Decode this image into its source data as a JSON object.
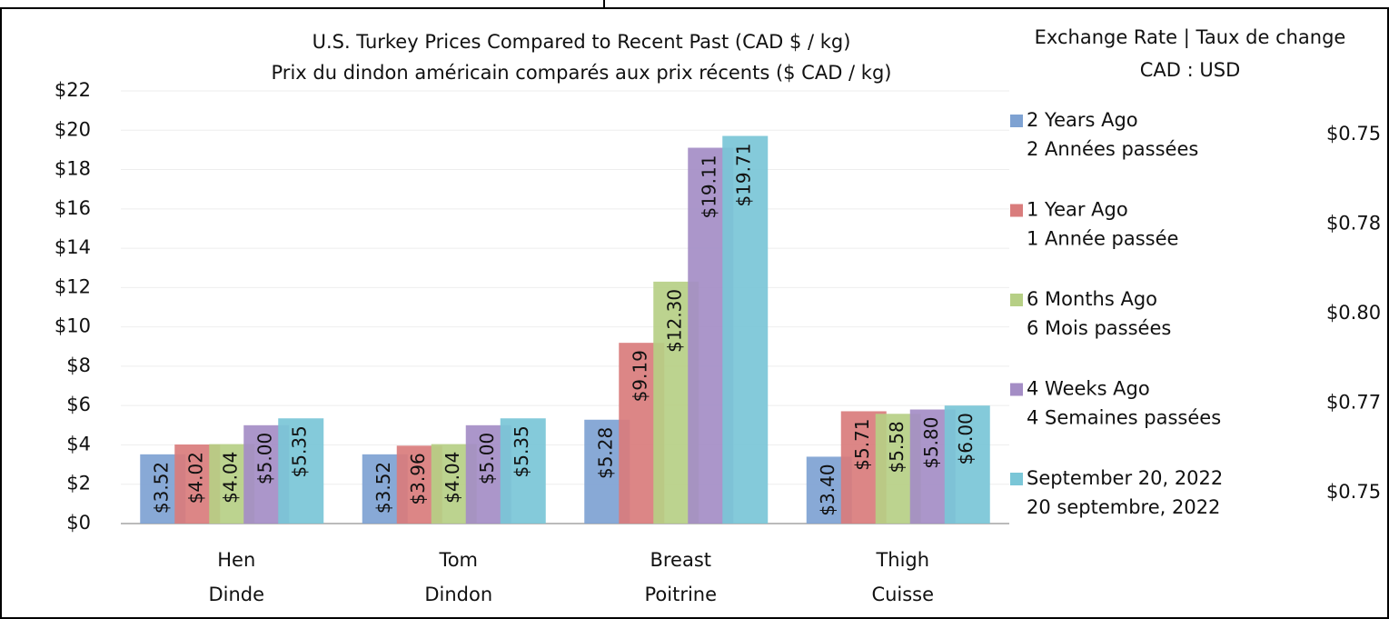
{
  "chart_data": {
    "type": "bar",
    "title": [
      "U.S. Turkey Prices Compared to Recent Past (CAD $ / kg)",
      "Prix du dindon américain comparés aux prix récents ($ CAD / kg)"
    ],
    "legend_title": [
      "Exchange Rate | Taux de change",
      "CAD : USD"
    ],
    "categories": [
      [
        "Hen",
        "Dinde"
      ],
      [
        "Tom",
        "Dindon"
      ],
      [
        "Breast",
        "Poitrine"
      ],
      [
        "Thigh",
        "Cuisse"
      ]
    ],
    "series": [
      {
        "name": [
          "2 Years Ago",
          "2 Années passées"
        ],
        "color": "#7ea2d2",
        "values": [
          3.52,
          3.52,
          5.28,
          3.4
        ],
        "value_labels": [
          "$3.52",
          "$3.52",
          "$5.28",
          "$3.40"
        ],
        "exchange_rate": {
          "value": 0.75,
          "label": "$0.75"
        }
      },
      {
        "name": [
          "1 Year Ago",
          "1 Année passée"
        ],
        "color": "#d97c7c",
        "values": [
          4.02,
          3.96,
          9.19,
          5.71
        ],
        "value_labels": [
          "$4.02",
          "$3.96",
          "$9.19",
          "$5.71"
        ],
        "exchange_rate": {
          "value": 0.78,
          "label": "$0.78"
        }
      },
      {
        "name": [
          "6 Months Ago",
          "6 Mois passées"
        ],
        "color": "#b6cf85",
        "values": [
          4.04,
          4.04,
          12.3,
          5.58
        ],
        "value_labels": [
          "$4.04",
          "$4.04",
          "$12.30",
          "$5.58"
        ],
        "exchange_rate": {
          "value": 0.8,
          "label": "$0.80"
        }
      },
      {
        "name": [
          "4 Weeks Ago",
          "4 Semaines passées"
        ],
        "color": "#a48dc5",
        "values": [
          5.0,
          5.0,
          19.11,
          5.8
        ],
        "value_labels": [
          "$5.00",
          "$5.00",
          "$19.11",
          "$5.80"
        ],
        "exchange_rate": {
          "value": 0.77,
          "label": "$0.77"
        }
      },
      {
        "name": [
          "September 20, 2022",
          "20 septembre, 2022"
        ],
        "color": "#7ac6d7",
        "values": [
          5.35,
          5.35,
          19.71,
          6.0
        ],
        "value_labels": [
          "$5.35",
          "$5.35",
          "$19.71",
          "$6.00"
        ],
        "exchange_rate": {
          "value": 0.75,
          "label": "$0.75"
        }
      }
    ],
    "ylim": [
      0,
      22
    ],
    "yticks": [
      {
        "value": 0,
        "label": "$0"
      },
      {
        "value": 2,
        "label": "$2"
      },
      {
        "value": 4,
        "label": "$4"
      },
      {
        "value": 6,
        "label": "$6"
      },
      {
        "value": 8,
        "label": "$8"
      },
      {
        "value": 10,
        "label": "$10"
      },
      {
        "value": 12,
        "label": "$12"
      },
      {
        "value": 14,
        "label": "$14"
      },
      {
        "value": 16,
        "label": "$16"
      },
      {
        "value": 18,
        "label": "$18"
      },
      {
        "value": 20,
        "label": "$20"
      },
      {
        "value": 22,
        "label": "$22"
      }
    ],
    "grid": true,
    "legend": "right"
  }
}
